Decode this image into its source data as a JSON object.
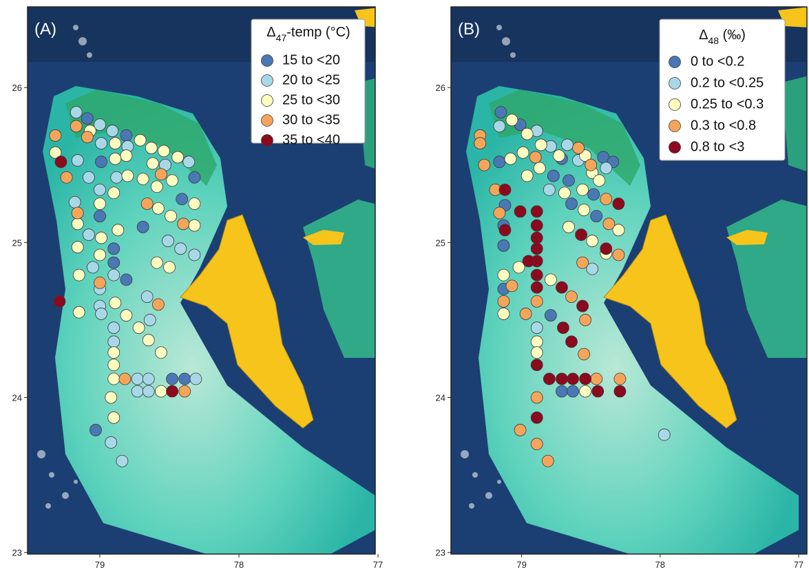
{
  "chart_data": [
    {
      "type": "scatter",
      "panel_label": "(A)",
      "legend_title": [
        "Δ",
        "47",
        "-temp (°C)"
      ],
      "xlim": [
        79.52,
        77.02
      ],
      "ylim": [
        22.99,
        26.52
      ],
      "xticks": [
        79,
        78,
        77
      ],
      "yticks": [
        23,
        24,
        25,
        26
      ],
      "series": [
        {
          "name": "15 to <20",
          "color": "#4a78b5",
          "x": [
            79.09,
            78.81,
            78.99,
            78.32,
            78.41,
            79.0,
            78.69,
            78.9,
            78.9,
            78.81,
            78.48,
            78.39,
            79.03
          ],
          "y": [
            25.8,
            25.69,
            25.52,
            25.42,
            25.28,
            25.17,
            25.1,
            24.96,
            24.87,
            24.76,
            24.12,
            24.12,
            23.79
          ]
        },
        {
          "name": "20 to <25",
          "color": "#a8d8e8",
          "x": [
            79.17,
            79.0,
            78.91,
            78.99,
            78.8,
            79.16,
            79.08,
            78.88,
            79.0,
            78.53,
            78.36,
            79.18,
            79.08,
            78.51,
            78.42,
            78.32,
            79.05,
            78.9,
            79.0,
            78.66,
            79.0,
            78.99,
            78.64,
            78.9,
            78.9,
            78.73,
            78.65,
            78.73,
            78.65,
            78.31,
            78.92,
            78.84
          ],
          "y": [
            25.84,
            25.76,
            25.72,
            25.64,
            25.62,
            25.53,
            25.42,
            25.42,
            25.34,
            25.5,
            25.52,
            25.26,
            25.05,
            25.01,
            24.96,
            24.92,
            24.84,
            24.79,
            24.7,
            24.65,
            24.59,
            24.54,
            24.5,
            24.45,
            24.36,
            24.12,
            24.12,
            24.04,
            24.04,
            24.12,
            23.71,
            23.59
          ]
        },
        {
          "name": "25 to <30",
          "color": "#fdfdc0",
          "x": [
            79.07,
            78.89,
            78.71,
            78.81,
            78.63,
            78.54,
            78.44,
            78.89,
            78.62,
            78.8,
            78.69,
            78.59,
            78.48,
            78.32,
            78.9,
            79.0,
            78.58,
            78.49,
            78.32,
            79.16,
            78.99,
            78.87,
            79.16,
            79.0,
            78.59,
            78.5,
            79.15,
            78.89,
            78.81,
            78.72,
            78.65,
            78.56,
            78.9,
            78.9,
            78.9,
            78.56,
            78.92,
            78.9,
            79.32,
            79.15
          ],
          "y": [
            25.72,
            25.64,
            25.66,
            25.56,
            25.61,
            25.59,
            25.55,
            25.54,
            25.51,
            25.43,
            25.41,
            25.36,
            25.4,
            25.25,
            25.32,
            25.25,
            25.22,
            25.17,
            25.11,
            25.12,
            25.03,
            25.08,
            24.97,
            24.92,
            24.87,
            24.84,
            24.79,
            24.61,
            24.53,
            24.45,
            24.37,
            24.29,
            24.29,
            24.21,
            24.12,
            24.04,
            24.0,
            23.87,
            25.58,
            24.55
          ]
        },
        {
          "name": "30 to <35",
          "color": "#f5a55a",
          "x": [
            79.32,
            79.17,
            79.09,
            79.24,
            79.16,
            79.0,
            78.58,
            78.66,
            78.56,
            78.4,
            78.82,
            78.39
          ],
          "y": [
            25.69,
            25.75,
            25.68,
            25.42,
            25.19,
            24.74,
            24.6,
            25.25,
            25.44,
            25.12,
            24.12,
            24.04
          ]
        },
        {
          "name": "35 to <40",
          "color": "#8b0a1e",
          "x": [
            79.28,
            79.29,
            78.48
          ],
          "y": [
            25.52,
            24.62,
            24.04
          ]
        }
      ]
    },
    {
      "type": "scatter",
      "panel_label": "(B)",
      "legend_title": [
        "Δ",
        "48",
        " (‰)"
      ],
      "xlim": [
        79.51,
        76.94
      ],
      "ylim": [
        22.99,
        26.52
      ],
      "xticks": [
        79,
        78,
        77
      ],
      "yticks": [
        23,
        24,
        25,
        26
      ],
      "series": [
        {
          "name": "0 to <0.2",
          "color": "#4a78b5",
          "x": [
            79.15,
            79.01,
            79.16,
            78.71,
            78.77,
            78.66,
            78.48,
            78.41,
            78.34,
            79.12,
            79.13,
            79.13,
            78.64,
            78.46,
            79.13,
            78.79,
            78.71,
            78.63
          ],
          "y": [
            25.84,
            25.76,
            25.52,
            25.54,
            25.43,
            25.4,
            25.31,
            25.55,
            25.52,
            25.24,
            25.11,
            24.98,
            25.25,
            25.17,
            24.7,
            24.53,
            24.04,
            24.04
          ]
        },
        {
          "name": "0.2 to <0.25",
          "color": "#a8d8e8",
          "x": [
            79.16,
            78.89,
            78.79,
            78.67,
            78.59,
            78.39,
            78.8,
            78.49,
            78.89,
            77.97
          ],
          "y": [
            25.75,
            25.72,
            25.62,
            25.63,
            25.53,
            25.48,
            25.34,
            24.83,
            24.45,
            23.76
          ]
        },
        {
          "name": "0.25 to <0.3",
          "color": "#fdfdc0",
          "x": [
            79.07,
            78.96,
            78.86,
            79.08,
            78.87,
            78.73,
            78.54,
            78.49,
            78.69,
            78.56,
            78.44,
            78.55,
            78.3,
            78.49,
            78.66,
            78.39,
            79.02,
            79.13,
            79.13,
            78.79,
            78.89,
            78.89,
            78.54,
            78.96,
            78.99
          ],
          "y": [
            25.79,
            25.7,
            25.63,
            25.54,
            25.48,
            25.56,
            25.56,
            25.45,
            25.32,
            25.34,
            25.4,
            25.21,
            25.08,
            25.01,
            25.1,
            24.93,
            24.84,
            24.79,
            24.54,
            24.76,
            24.36,
            24.29,
            24.04,
            25.43,
            25.58
          ]
        },
        {
          "name": "0.3 to <0.8",
          "color": "#f5a55a",
          "x": [
            79.3,
            79.3,
            79.27,
            79.19,
            79.16,
            78.9,
            78.59,
            78.5,
            78.39,
            78.37,
            78.3,
            78.56,
            79.13,
            79.07,
            78.97,
            78.89,
            78.64,
            78.54,
            78.55,
            78.46,
            78.29,
            78.89,
            79.01,
            78.89,
            78.81
          ],
          "y": [
            25.69,
            25.64,
            25.5,
            25.34,
            25.19,
            25.55,
            25.61,
            25.5,
            25.28,
            25.12,
            24.92,
            24.87,
            24.62,
            24.72,
            24.54,
            24.62,
            24.65,
            24.5,
            24.28,
            24.12,
            24.12,
            24.0,
            23.79,
            23.7,
            23.59
          ]
        },
        {
          "name": "0.8 to <3",
          "color": "#8b0a1e",
          "x": [
            79.12,
            79.01,
            78.89,
            78.89,
            78.89,
            78.89,
            78.89,
            78.89,
            78.89,
            79.12,
            78.95,
            78.71,
            78.7,
            78.56,
            78.64,
            78.89,
            78.8,
            78.71,
            78.63,
            78.54,
            78.45,
            78.29,
            78.89,
            78.3,
            78.39,
            78.57
          ],
          "y": [
            25.34,
            25.2,
            25.2,
            25.11,
            25.03,
            24.96,
            24.88,
            24.79,
            24.71,
            25.08,
            24.88,
            24.71,
            24.45,
            24.59,
            24.36,
            24.21,
            24.12,
            24.12,
            24.12,
            24.12,
            24.04,
            24.04,
            23.87,
            25.25,
            24.96,
            25.05
          ]
        }
      ]
    }
  ]
}
